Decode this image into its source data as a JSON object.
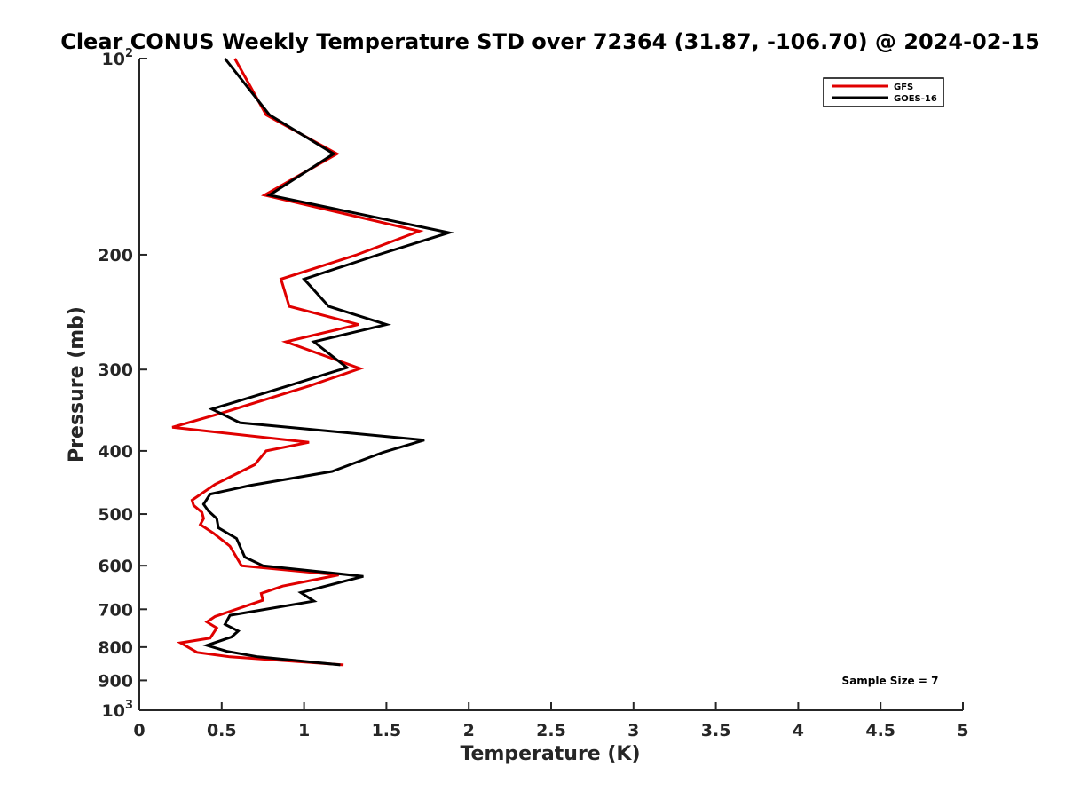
{
  "chart_data": {
    "type": "line",
    "title": "Clear CONUS Weekly Temperature STD over 72364 (31.87, -106.70) @ 2024-02-15",
    "xlabel": "Temperature (K)",
    "ylabel": "Pressure (mb)",
    "xlim": [
      0,
      5
    ],
    "ylim": [
      100,
      1000
    ],
    "y_scale": "log",
    "y_reversed": true,
    "x_ticks": [
      "0",
      "0.5",
      "1",
      "1.5",
      "2",
      "2.5",
      "3",
      "3.5",
      "4",
      "4.5",
      "5"
    ],
    "y_ticks": [
      {
        "value": 100,
        "base": "10",
        "exp": "2"
      },
      {
        "value": 200,
        "label": "200"
      },
      {
        "value": 300,
        "label": "300"
      },
      {
        "value": 400,
        "label": "400"
      },
      {
        "value": 500,
        "label": "500"
      },
      {
        "value": 600,
        "label": "600"
      },
      {
        "value": 700,
        "label": "700"
      },
      {
        "value": 800,
        "label": "800"
      },
      {
        "value": 900,
        "label": "900"
      },
      {
        "value": 1000,
        "base": "10",
        "exp": "3"
      }
    ],
    "grid": false,
    "legend_position": "top-right",
    "annotation": "Sample Size = 7",
    "series": [
      {
        "name": "GFS",
        "color": "#e00000",
        "points": [
          [
            0.58,
            100
          ],
          [
            0.77,
            122
          ],
          [
            1.2,
            140
          ],
          [
            0.76,
            162
          ],
          [
            1.7,
            184
          ],
          [
            1.32,
            200
          ],
          [
            0.86,
            218
          ],
          [
            0.91,
            240
          ],
          [
            1.33,
            256
          ],
          [
            0.89,
            272
          ],
          [
            1.34,
            299
          ],
          [
            1.03,
            318
          ],
          [
            0.5,
            350
          ],
          [
            0.2,
            368
          ],
          [
            1.03,
            388
          ],
          [
            0.77,
            400
          ],
          [
            0.7,
            420
          ],
          [
            0.46,
            450
          ],
          [
            0.32,
            476
          ],
          [
            0.33,
            485
          ],
          [
            0.38,
            497
          ],
          [
            0.39,
            508
          ],
          [
            0.37,
            519
          ],
          [
            0.45,
            535
          ],
          [
            0.55,
            560
          ],
          [
            0.62,
            600
          ],
          [
            1.21,
            620
          ],
          [
            0.87,
            645
          ],
          [
            0.74,
            662
          ],
          [
            0.75,
            678
          ],
          [
            0.46,
            718
          ],
          [
            0.41,
            732
          ],
          [
            0.47,
            748
          ],
          [
            0.43,
            775
          ],
          [
            0.25,
            788
          ],
          [
            0.35,
            815
          ],
          [
            0.55,
            828
          ],
          [
            1.24,
            852
          ]
        ]
      },
      {
        "name": "GOES-16",
        "color": "#000000",
        "points": [
          [
            0.52,
            100
          ],
          [
            0.79,
            122
          ],
          [
            1.18,
            140
          ],
          [
            0.79,
            162
          ],
          [
            1.88,
            185
          ],
          [
            1.45,
            200
          ],
          [
            1.0,
            218
          ],
          [
            1.15,
            240
          ],
          [
            1.5,
            256
          ],
          [
            1.06,
            272
          ],
          [
            1.26,
            298
          ],
          [
            0.9,
            318
          ],
          [
            0.44,
            345
          ],
          [
            0.61,
            362
          ],
          [
            1.73,
            385
          ],
          [
            1.48,
            402
          ],
          [
            1.17,
            430
          ],
          [
            0.67,
            452
          ],
          [
            0.43,
            466
          ],
          [
            0.39,
            483
          ],
          [
            0.42,
            495
          ],
          [
            0.47,
            508
          ],
          [
            0.48,
            525
          ],
          [
            0.59,
            545
          ],
          [
            0.64,
            582
          ],
          [
            0.75,
            600
          ],
          [
            1.36,
            623
          ],
          [
            1.09,
            649
          ],
          [
            0.98,
            660
          ],
          [
            1.06,
            680
          ],
          [
            0.55,
            715
          ],
          [
            0.52,
            738
          ],
          [
            0.6,
            756
          ],
          [
            0.56,
            772
          ],
          [
            0.41,
            795
          ],
          [
            0.53,
            812
          ],
          [
            0.72,
            828
          ],
          [
            1.22,
            852
          ]
        ]
      }
    ]
  }
}
